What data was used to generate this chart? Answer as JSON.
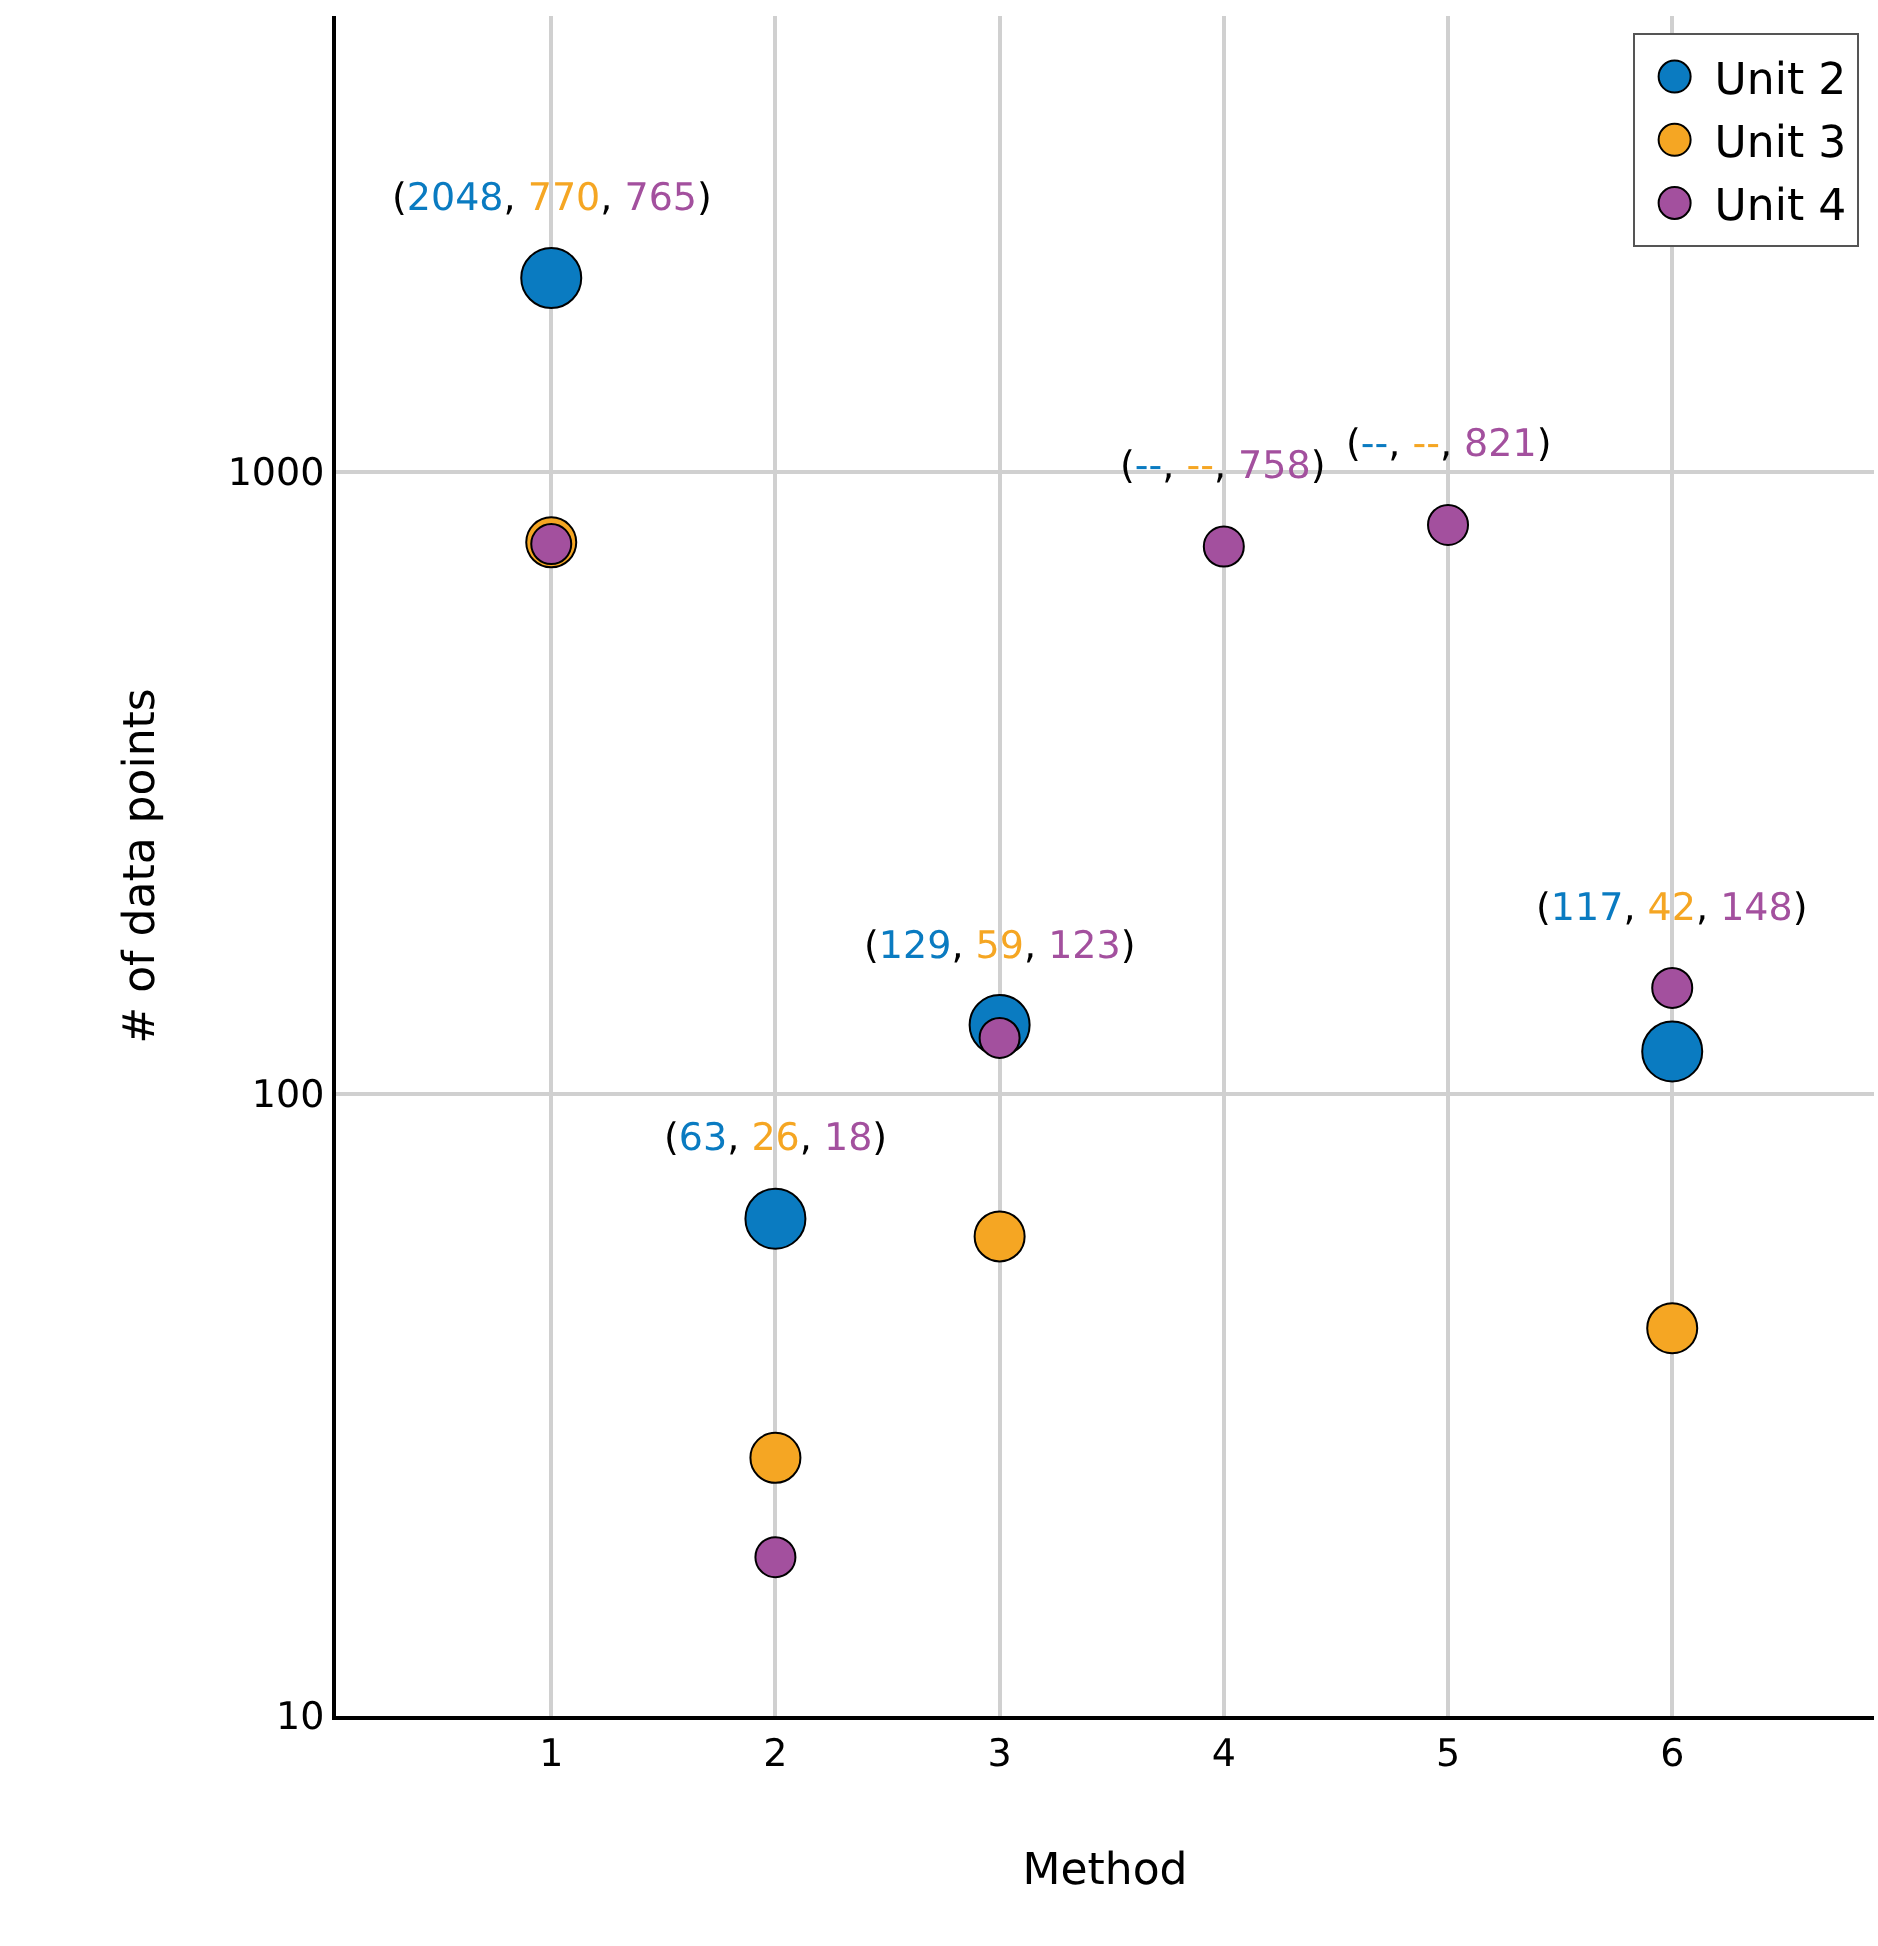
{
  "chart_data": {
    "type": "scatter",
    "xlabel": "Method",
    "ylabel": "# of data points",
    "x": [
      1,
      2,
      3,
      4,
      5,
      6
    ],
    "series": [
      {
        "name": "Unit 2",
        "color": "#0a7bc1",
        "values": [
          2048,
          63,
          129,
          null,
          null,
          117
        ]
      },
      {
        "name": "Unit 3",
        "color": "#f5a623",
        "values": [
          770,
          26,
          59,
          null,
          null,
          42
        ]
      },
      {
        "name": "Unit 4",
        "color": "#a3509e",
        "values": [
          765,
          18,
          123,
          758,
          821,
          148
        ]
      }
    ],
    "annotations": [
      {
        "text": "(2048, 770, 765)",
        "x": 1,
        "y": 2048
      },
      {
        "text": "(63, 26, 18)",
        "x": 2,
        "y": 63
      },
      {
        "text": "(129, 59, 123)",
        "x": 3,
        "y": 129
      },
      {
        "text": "(--, --, 758)",
        "x": 4,
        "y": 758
      },
      {
        "text": "(--, --, 821)",
        "x": 5,
        "y": 821
      },
      {
        "text": "(117, 42, 148)",
        "x": 6,
        "y": 148
      }
    ],
    "log": "y",
    "xlim": [
      0.04,
      6.9
    ],
    "xticks": [
      1,
      2,
      3,
      4,
      5,
      6
    ],
    "ylim": [
      10,
      5400
    ],
    "yticks": [
      10,
      100,
      1000
    ],
    "grid": true,
    "legend": "top right",
    "marker": "circle"
  }
}
